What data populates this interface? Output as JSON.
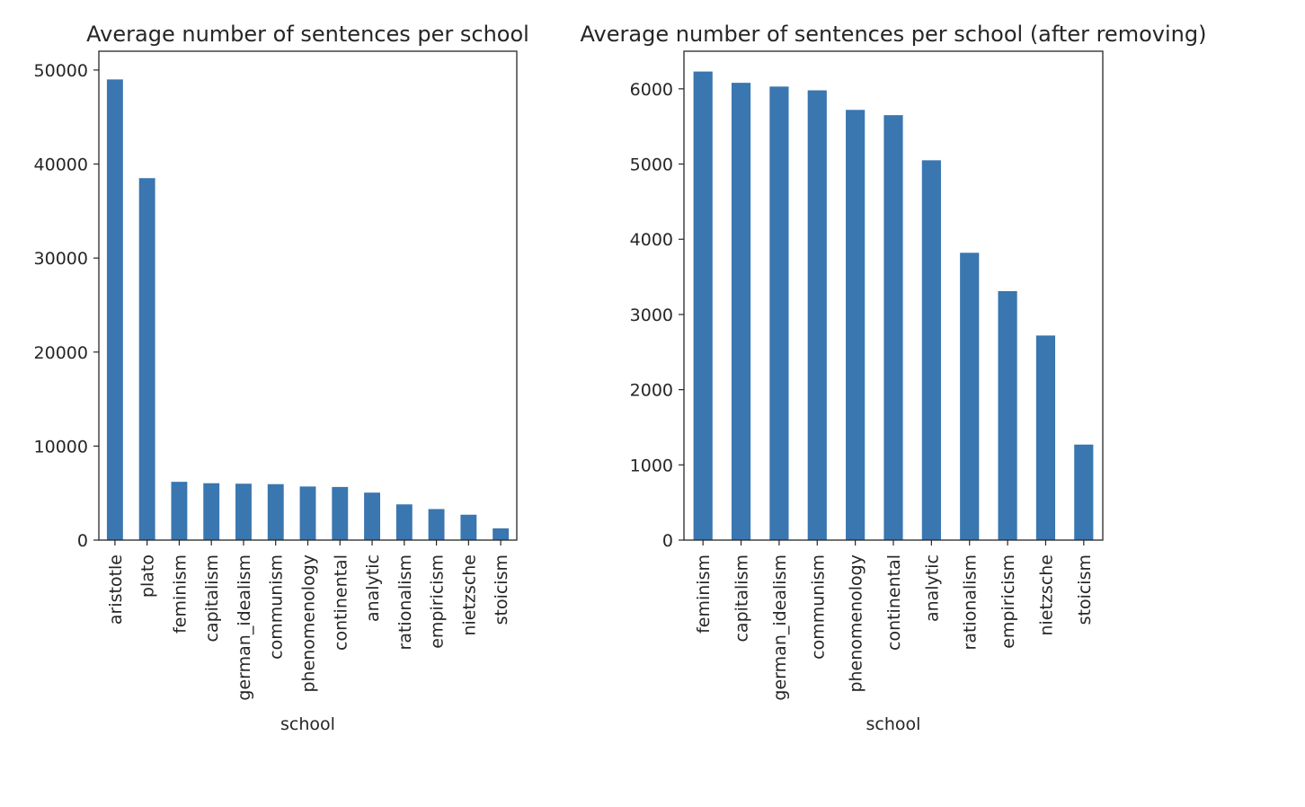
{
  "chart_data": [
    {
      "type": "bar",
      "title": "Average number of sentences per school",
      "xlabel": "school",
      "ylabel": "",
      "ylim": [
        0,
        52000
      ],
      "yticks": [
        0,
        10000,
        20000,
        30000,
        40000,
        50000
      ],
      "grid": false,
      "legend": "none",
      "color": "#3a76af",
      "categories": [
        "aristotle",
        "plato",
        "feminism",
        "capitalism",
        "german_idealism",
        "communism",
        "phenomenology",
        "continental",
        "analytic",
        "rationalism",
        "empiricism",
        "nietzsche",
        "stoicism"
      ],
      "values": [
        49000,
        38500,
        6200,
        6050,
        6000,
        5950,
        5700,
        5650,
        5050,
        3800,
        3300,
        2700,
        1250
      ]
    },
    {
      "type": "bar",
      "title": "Average number of sentences per school (after removing)",
      "xlabel": "school",
      "ylabel": "",
      "ylim": [
        0,
        6500
      ],
      "yticks": [
        0,
        1000,
        2000,
        3000,
        4000,
        5000,
        6000
      ],
      "grid": false,
      "legend": "none",
      "color": "#3a76af",
      "categories": [
        "feminism",
        "capitalism",
        "german_idealism",
        "communism",
        "phenomenology",
        "continental",
        "analytic",
        "rationalism",
        "empiricism",
        "nietzsche",
        "stoicism"
      ],
      "values": [
        6230,
        6080,
        6030,
        5980,
        5720,
        5650,
        5050,
        3820,
        3310,
        2720,
        1270
      ]
    }
  ]
}
